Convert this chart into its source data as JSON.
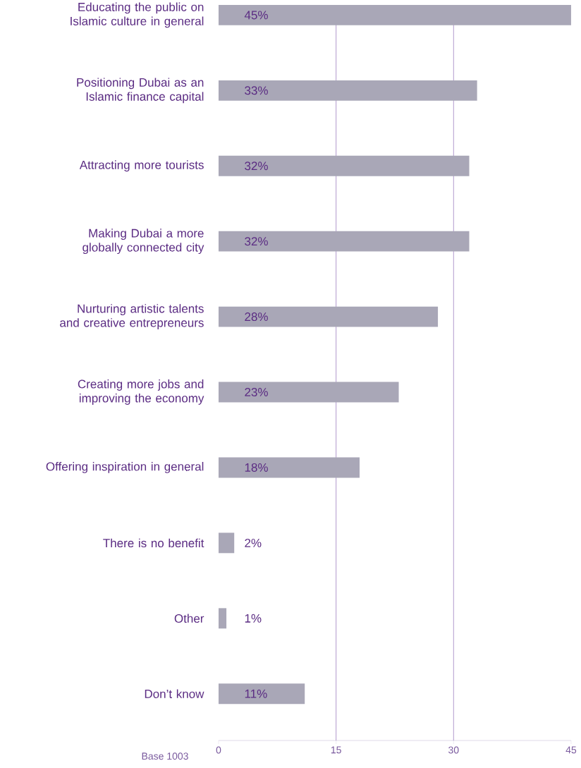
{
  "chart_data": {
    "type": "bar",
    "orientation": "horizontal",
    "categories": [
      "Educating the public on Islamic culture in general",
      "Positioning Dubai as an Islamic finance capital",
      "Attracting more tourists",
      "Making Dubai a more globally connected city",
      "Nurturing artistic talents and creative entrepreneurs",
      "Creating more jobs and improving the economy",
      "Offering inspiration in general",
      "There is no benefit",
      "Other",
      "Don’t know"
    ],
    "values": [
      45,
      33,
      32,
      32,
      28,
      23,
      18,
      2,
      1,
      11
    ],
    "value_labels": [
      "45%",
      "33%",
      "32%",
      "32%",
      "28%",
      "23%",
      "18%",
      "2%",
      "1%",
      "11%"
    ],
    "color": "#a9a7b7",
    "xlim": [
      0,
      45
    ],
    "xticks": [
      0,
      15,
      30,
      45
    ],
    "ref_lines": [
      {
        "axis": "x",
        "value": 15,
        "color": "#9d7fc0"
      },
      {
        "axis": "x",
        "value": 30,
        "color": "#9d7fc0"
      }
    ],
    "annotations": [
      "Base 1003"
    ]
  }
}
